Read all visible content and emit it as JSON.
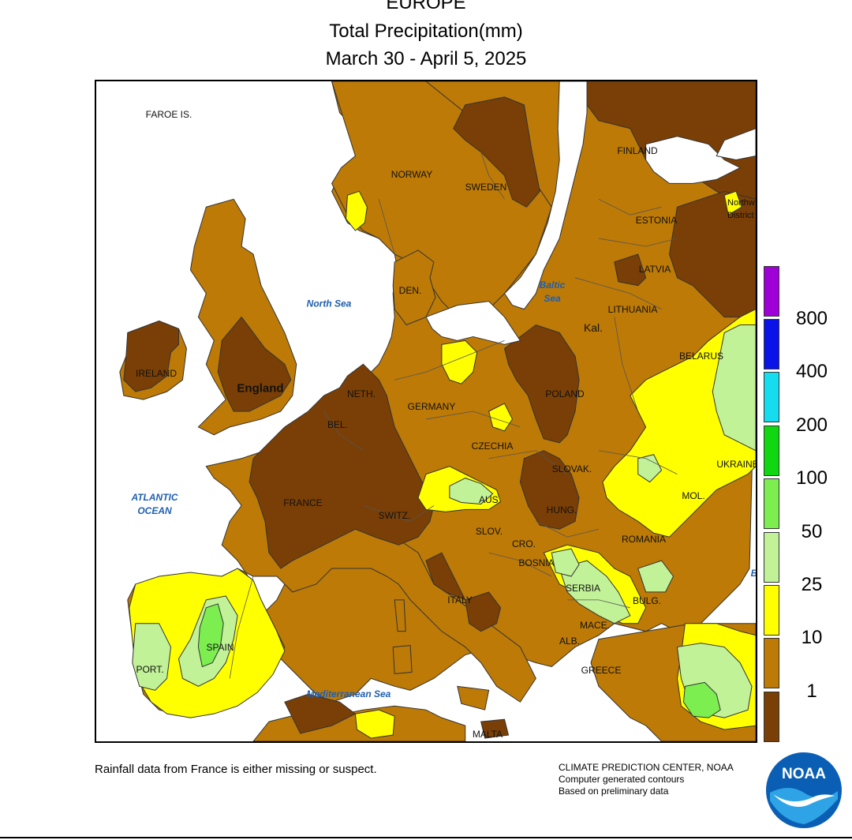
{
  "title": {
    "region": "EUROPE",
    "variable": "Total Precipitation(mm)",
    "period": "March 30 - April 5, 2025"
  },
  "map_labels": {
    "countries": [
      {
        "key": "faroe",
        "text": "FAROE IS."
      },
      {
        "key": "norway",
        "text": "NORWAY"
      },
      {
        "key": "sweden",
        "text": "SWEDEN"
      },
      {
        "key": "finland",
        "text": "FINLAND"
      },
      {
        "key": "estonia",
        "text": "ESTONIA"
      },
      {
        "key": "latvia",
        "text": "LATVIA"
      },
      {
        "key": "lithuania",
        "text": "LITHUANIA"
      },
      {
        "key": "kal",
        "text": "Kal."
      },
      {
        "key": "northwest_district",
        "text": "Northw District"
      },
      {
        "key": "belarus",
        "text": "BELARUS"
      },
      {
        "key": "den",
        "text": "DEN."
      },
      {
        "key": "ireland",
        "text": "IRELAND"
      },
      {
        "key": "england",
        "text": "England"
      },
      {
        "key": "neth",
        "text": "NETH."
      },
      {
        "key": "bel",
        "text": "BEL."
      },
      {
        "key": "germany",
        "text": "GERMANY"
      },
      {
        "key": "poland",
        "text": "POLAND"
      },
      {
        "key": "czechia",
        "text": "CZECHIA"
      },
      {
        "key": "slovak",
        "text": "SLOVAK."
      },
      {
        "key": "ukraine",
        "text": "UKRAINE"
      },
      {
        "key": "france",
        "text": "FRANCE"
      },
      {
        "key": "switz",
        "text": "SWITZ."
      },
      {
        "key": "aus",
        "text": "AUS."
      },
      {
        "key": "hung",
        "text": "HUNG."
      },
      {
        "key": "mol",
        "text": "MOL."
      },
      {
        "key": "slov",
        "text": "SLOV."
      },
      {
        "key": "cro",
        "text": "CRO."
      },
      {
        "key": "romania",
        "text": "ROMANIA"
      },
      {
        "key": "bosnia",
        "text": "BOSNIA"
      },
      {
        "key": "serbia",
        "text": "SERBIA"
      },
      {
        "key": "bulg",
        "text": "BULG."
      },
      {
        "key": "italy",
        "text": "ITALY"
      },
      {
        "key": "mace",
        "text": "MACE."
      },
      {
        "key": "alb",
        "text": "ALB."
      },
      {
        "key": "greece",
        "text": "GREECE"
      },
      {
        "key": "spain",
        "text": "SPAIN"
      },
      {
        "key": "port",
        "text": "PORT."
      },
      {
        "key": "malta",
        "text": "MALTA"
      }
    ],
    "seas": [
      {
        "key": "north_sea",
        "text": "North Sea"
      },
      {
        "key": "baltic_sea",
        "text": "Baltic Sea"
      },
      {
        "key": "atlantic",
        "text": "ATLANTIC OCEAN"
      },
      {
        "key": "mediterranean",
        "text": "Mediterranean Sea"
      },
      {
        "key": "black_sea_cut",
        "text": "B"
      }
    ]
  },
  "legend": {
    "unit": "mm",
    "bins": [
      {
        "color": "#a000d8"
      },
      {
        "color": "#0a14e8",
        "label": "800"
      },
      {
        "color": "#16dcf0",
        "label": "400"
      },
      {
        "color": "#10d810",
        "label": "200"
      },
      {
        "color": "#7cee50",
        "label": "100"
      },
      {
        "color": "#c2f298",
        "label": "50"
      },
      {
        "color": "#ffff00",
        "label": "25"
      },
      {
        "color": "#bd7a06",
        "label": "10"
      },
      {
        "color": "#7a3f06",
        "label": "1"
      }
    ]
  },
  "colors": {
    "bin_lt1": "#7a3f06",
    "bin_1_10": "#bd7a06",
    "bin_10_25": "#ffff00",
    "bin_25_50": "#c2f298",
    "bin_50_100": "#7cee50",
    "sea": "#ffffff",
    "sea_label": "#1f5fb0"
  },
  "notes": {
    "footnote": "Rainfall data from France is either missing or suspect.",
    "cpc": [
      "CLIMATE PREDICTION CENTER, NOAA",
      "Computer generated contours",
      "Based on preliminary data"
    ],
    "logo_text": "NOAA"
  }
}
